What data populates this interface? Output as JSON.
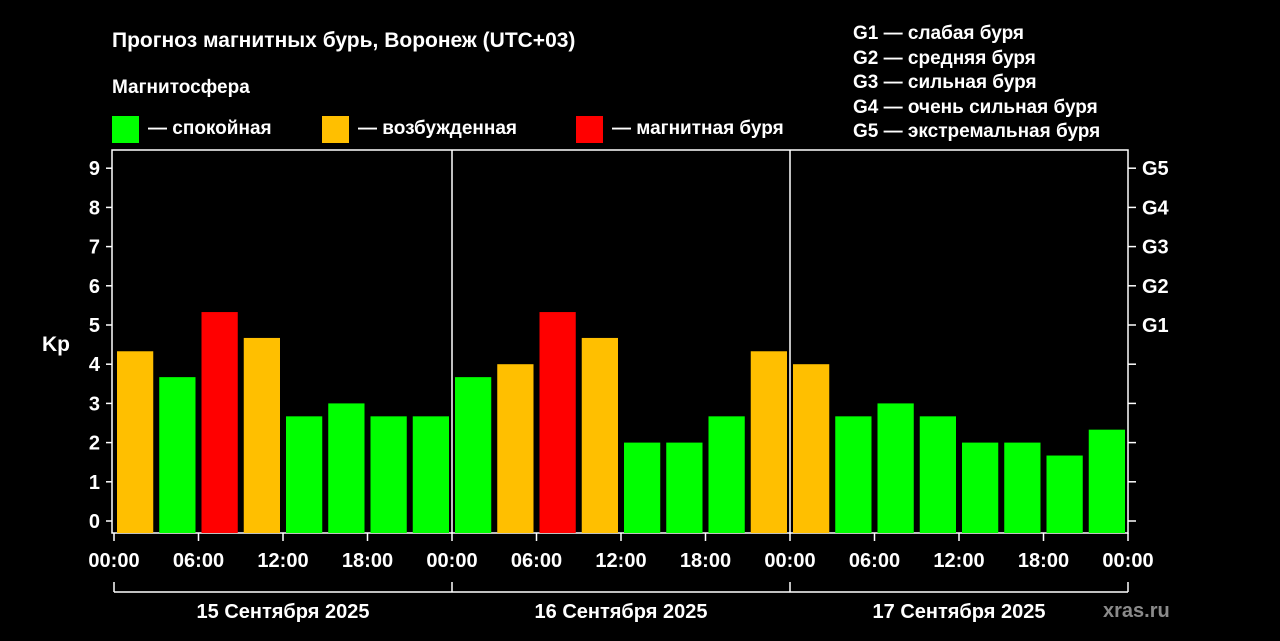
{
  "title": "Прогноз магнитных бурь, Воронеж (UTC+03)",
  "legend": {
    "title": "Магнитосфера",
    "items": [
      {
        "label": "— спокойная",
        "color": "#00ff00"
      },
      {
        "label": "— возбужденная",
        "color": "#ffbf00"
      },
      {
        "label": "— магнитная буря",
        "color": "#ff0000"
      }
    ]
  },
  "storm_scale": [
    "G1 — слабая буря",
    "G2 — средняя буря",
    "G3 — сильная буря",
    "G4 — очень сильная буря",
    "G5 — экстремальная буря"
  ],
  "watermark": "xras.ru",
  "colors": {
    "quiet": "#00ff00",
    "unsettled": "#ffbf00",
    "storm": "#ff0000",
    "background": "#000000",
    "axis": "#ffffff"
  },
  "chart_data": {
    "type": "bar",
    "ylabel": "Kp",
    "ylim": [
      0,
      9
    ],
    "yticks": [
      "0",
      "1",
      "2",
      "3",
      "4",
      "5",
      "6",
      "7",
      "8",
      "9"
    ],
    "right_ticks": [
      {
        "kp": 5,
        "label": "G1"
      },
      {
        "kp": 6,
        "label": "G2"
      },
      {
        "kp": 7,
        "label": "G3"
      },
      {
        "kp": 8,
        "label": "G4"
      },
      {
        "kp": 9,
        "label": "G5"
      }
    ],
    "xtick_labels": [
      "00:00",
      "06:00",
      "12:00",
      "18:00",
      "00:00",
      "06:00",
      "12:00",
      "18:00",
      "00:00",
      "06:00",
      "12:00",
      "18:00",
      "00:00"
    ],
    "days": [
      "15 Сентября 2025",
      "16 Сентября 2025",
      "17 Сентября 2025"
    ],
    "categories": [
      "15.09 00:00",
      "15.09 03:00",
      "15.09 06:00",
      "15.09 09:00",
      "15.09 12:00",
      "15.09 15:00",
      "15.09 18:00",
      "15.09 21:00",
      "16.09 00:00",
      "16.09 03:00",
      "16.09 06:00",
      "16.09 09:00",
      "16.09 12:00",
      "16.09 15:00",
      "16.09 18:00",
      "16.09 21:00",
      "17.09 00:00",
      "17.09 03:00",
      "17.09 06:00",
      "17.09 09:00",
      "17.09 12:00",
      "17.09 15:00",
      "17.09 18:00",
      "17.09 21:00"
    ],
    "values": [
      4.33,
      3.67,
      5.33,
      4.67,
      2.67,
      3.0,
      2.67,
      2.67,
      3.67,
      4.0,
      5.33,
      4.67,
      2.0,
      2.0,
      2.67,
      4.33,
      4.0,
      2.67,
      3.0,
      2.67,
      2.0,
      2.0,
      1.67,
      2.33
    ],
    "levels": [
      "unsettled",
      "quiet",
      "storm",
      "unsettled",
      "quiet",
      "quiet",
      "quiet",
      "quiet",
      "quiet",
      "unsettled",
      "storm",
      "unsettled",
      "quiet",
      "quiet",
      "quiet",
      "unsettled",
      "unsettled",
      "quiet",
      "quiet",
      "quiet",
      "quiet",
      "quiet",
      "quiet",
      "quiet"
    ]
  }
}
